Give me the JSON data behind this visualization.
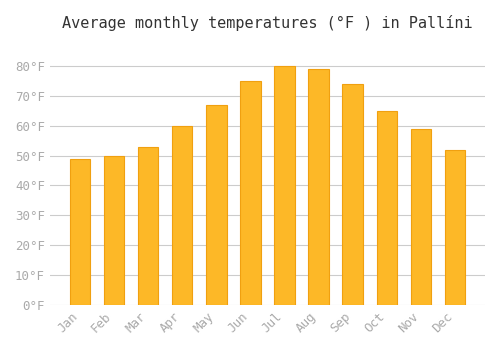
{
  "title": "Average monthly temperatures (°F ) in Pallíni",
  "months": [
    "Jan",
    "Feb",
    "Mar",
    "Apr",
    "May",
    "Jun",
    "Jul",
    "Aug",
    "Sep",
    "Oct",
    "Nov",
    "Dec"
  ],
  "values": [
    49,
    50,
    53,
    60,
    67,
    75,
    80,
    79,
    74,
    65,
    59,
    52
  ],
  "bar_color": "#FDB827",
  "bar_edge_color": "#F0A010",
  "background_color": "#FFFFFF",
  "grid_color": "#CCCCCC",
  "text_color": "#AAAAAA",
  "ylim": [
    0,
    88
  ],
  "yticks": [
    0,
    10,
    20,
    30,
    40,
    50,
    60,
    70,
    80
  ],
  "ylabel_suffix": "°F",
  "title_fontsize": 11,
  "tick_fontsize": 9,
  "font_family": "monospace"
}
